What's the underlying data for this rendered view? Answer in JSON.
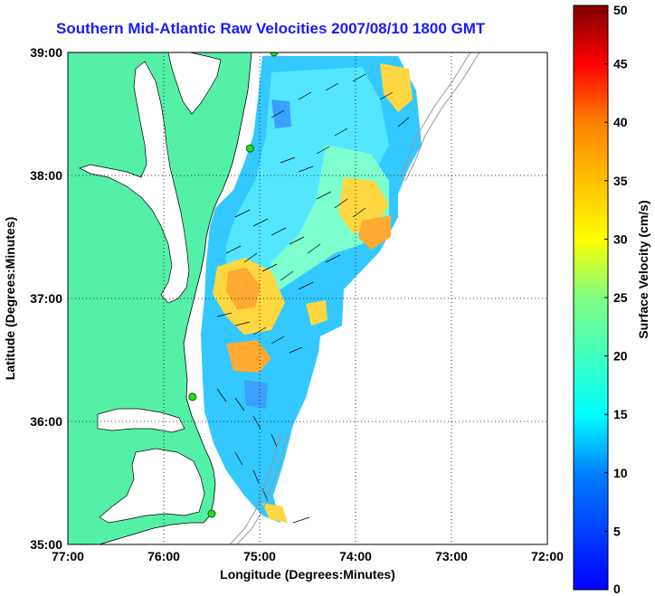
{
  "chart_data": {
    "type": "heatmap",
    "title": "Southern Mid-Atlantic Raw Velocities 2007/08/10 1800 GMT",
    "xlabel": "Longitude (Degrees:Minutes)",
    "ylabel": "Latitude (Degrees:Minutes)",
    "x_ticks": [
      "77:00",
      "76:00",
      "75:00",
      "74:00",
      "73:00",
      "72:00"
    ],
    "y_ticks": [
      "35:00",
      "36:00",
      "37:00",
      "38:00",
      "39:00"
    ],
    "x_range_deg_west": [
      77,
      72
    ],
    "y_range_deg_north": [
      35,
      39
    ],
    "grid": "dotted",
    "colorbar": {
      "label": "Surface Velocity (cm/s)",
      "range": [
        0,
        50
      ],
      "ticks": [
        "0",
        "5",
        "10",
        "15",
        "20",
        "25",
        "30",
        "35",
        "40",
        "45",
        "50"
      ],
      "colormap": "jet"
    },
    "colors": {
      "land": "#55f0a8",
      "title": "#1a1aff",
      "station": "#22dd22"
    },
    "stations_deg": [
      {
        "lon_w": 74.85,
        "lat_n": 39.0
      },
      {
        "lon_w": 75.1,
        "lat_n": 38.22
      },
      {
        "lon_w": 75.7,
        "lat_n": 36.2
      },
      {
        "lon_w": 75.5,
        "lat_n": 35.25
      }
    ]
  }
}
